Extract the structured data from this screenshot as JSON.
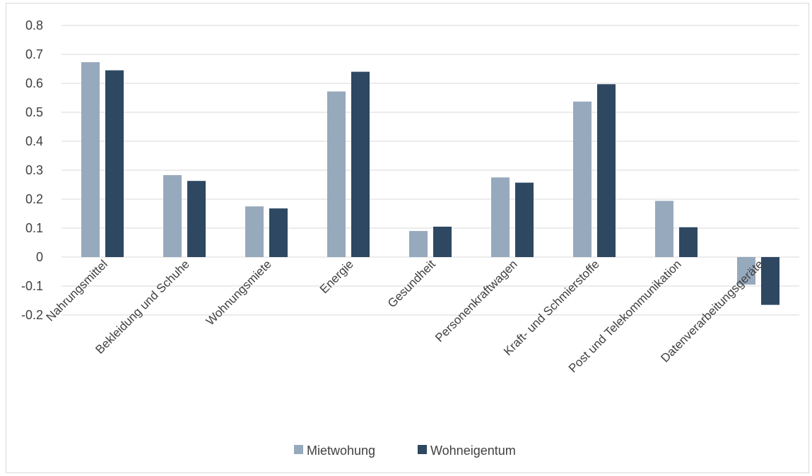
{
  "chart_data": {
    "type": "bar",
    "categories": [
      "Nahrungsmittel",
      "Bekleidung und Schuhe",
      "Wohnungsmiete",
      "Energie",
      "Gesundheit",
      "Personenkraftwagen",
      "Kraft- und Schmierstoffe",
      "Post und Telekommunikation",
      "Datenverarbeitungsgeräte"
    ],
    "series": [
      {
        "name": "Mietwohung",
        "color": "#97a9bc",
        "values": [
          0.673,
          0.283,
          0.175,
          0.572,
          0.09,
          0.275,
          0.537,
          0.194,
          -0.095
        ]
      },
      {
        "name": "Wohneigentum",
        "color": "#2e4862",
        "values": [
          0.645,
          0.263,
          0.168,
          0.64,
          0.105,
          0.257,
          0.597,
          0.103,
          -0.165
        ]
      }
    ],
    "ylim": [
      -0.2,
      0.8
    ],
    "yticks": [
      "0.8",
      "0.7",
      "0.6",
      "0.5",
      "0.4",
      "0.3",
      "0.2",
      "0.1",
      "0",
      "-0.1",
      "-0.2"
    ],
    "grid": true,
    "legend_position": "bottom",
    "title": "",
    "xlabel": "",
    "ylabel": ""
  }
}
